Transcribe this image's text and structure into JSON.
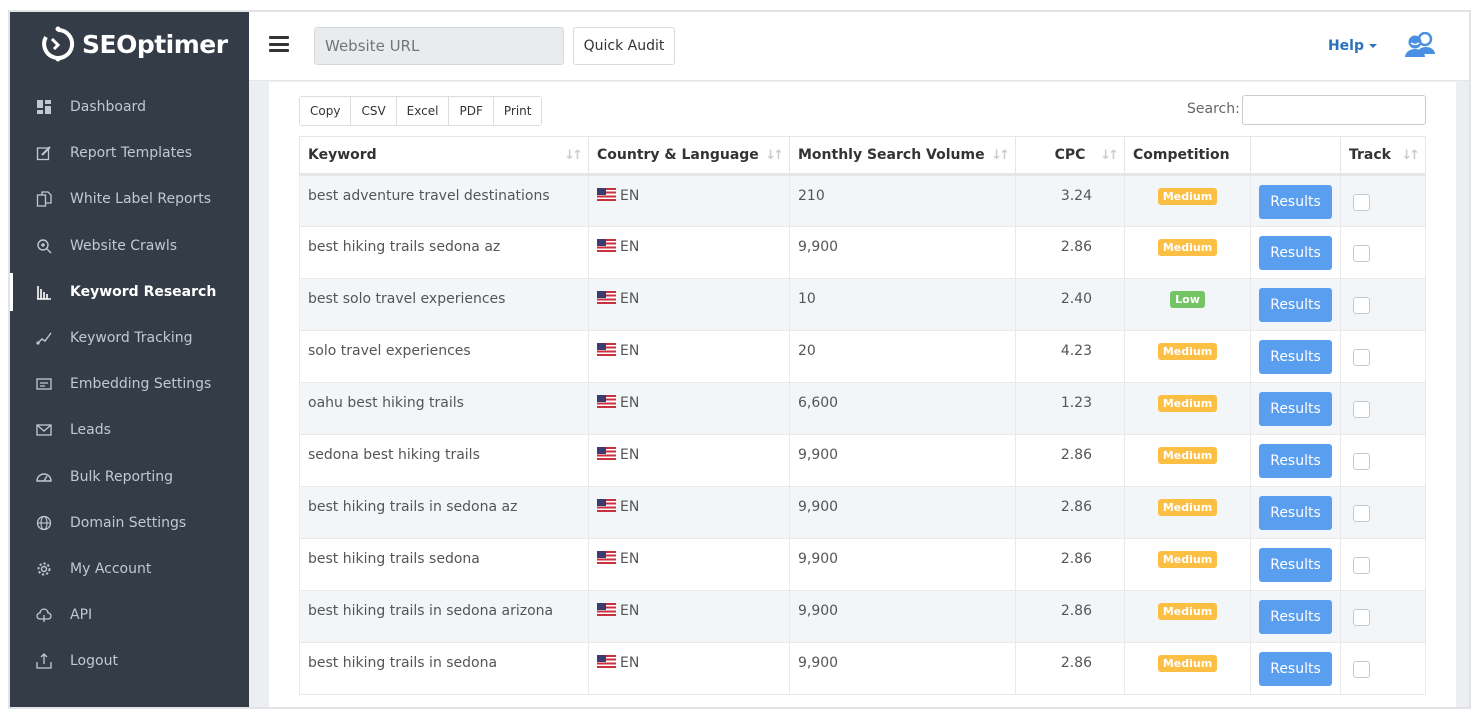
{
  "brand": {
    "name": "SEOptimer"
  },
  "header": {
    "url_placeholder": "Website URL",
    "quick_audit": "Quick Audit",
    "help": "Help"
  },
  "sidebar": {
    "items": [
      {
        "label": "Dashboard",
        "icon": "dashboard-icon"
      },
      {
        "label": "Report Templates",
        "icon": "edit-icon"
      },
      {
        "label": "White Label Reports",
        "icon": "copy-icon"
      },
      {
        "label": "Website Crawls",
        "icon": "search-plus-icon"
      },
      {
        "label": "Keyword Research",
        "icon": "bar-chart-icon",
        "active": true
      },
      {
        "label": "Keyword Tracking",
        "icon": "line-chart-icon"
      },
      {
        "label": "Embedding Settings",
        "icon": "embed-icon"
      },
      {
        "label": "Leads",
        "icon": "envelope-icon"
      },
      {
        "label": "Bulk Reporting",
        "icon": "gauge-icon"
      },
      {
        "label": "Domain Settings",
        "icon": "globe-icon"
      },
      {
        "label": "My Account",
        "icon": "gear-icon"
      },
      {
        "label": "API",
        "icon": "cloud-icon"
      },
      {
        "label": "Logout",
        "icon": "logout-icon"
      }
    ]
  },
  "toolbar": {
    "buttons": [
      "Copy",
      "CSV",
      "Excel",
      "PDF",
      "Print"
    ],
    "search_label": "Search:"
  },
  "table": {
    "columns": [
      "Keyword",
      "Country & Language",
      "Monthly Search Volume",
      "CPC",
      "Competition",
      "",
      "Track"
    ],
    "results_label": "Results",
    "rows": [
      {
        "keyword": "best adventure travel destinations",
        "lang": "EN",
        "volume": "210",
        "cpc": "3.24",
        "competition": "Medium"
      },
      {
        "keyword": "best hiking trails sedona az",
        "lang": "EN",
        "volume": "9,900",
        "cpc": "2.86",
        "competition": "Medium"
      },
      {
        "keyword": "best solo travel experiences",
        "lang": "EN",
        "volume": "10",
        "cpc": "2.40",
        "competition": "Low"
      },
      {
        "keyword": "solo travel experiences",
        "lang": "EN",
        "volume": "20",
        "cpc": "4.23",
        "competition": "Medium"
      },
      {
        "keyword": "oahu best hiking trails",
        "lang": "EN",
        "volume": "6,600",
        "cpc": "1.23",
        "competition": "Medium"
      },
      {
        "keyword": "sedona best hiking trails",
        "lang": "EN",
        "volume": "9,900",
        "cpc": "2.86",
        "competition": "Medium"
      },
      {
        "keyword": "best hiking trails in sedona az",
        "lang": "EN",
        "volume": "9,900",
        "cpc": "2.86",
        "competition": "Medium"
      },
      {
        "keyword": "best hiking trails sedona",
        "lang": "EN",
        "volume": "9,900",
        "cpc": "2.86",
        "competition": "Medium"
      },
      {
        "keyword": "best hiking trails in sedona arizona",
        "lang": "EN",
        "volume": "9,900",
        "cpc": "2.86",
        "competition": "Medium"
      },
      {
        "keyword": "best hiking trails in sedona",
        "lang": "EN",
        "volume": "9,900",
        "cpc": "2.86",
        "competition": "Medium"
      }
    ]
  },
  "colors": {
    "sidebar": "#343d47",
    "accent": "#5a9ef0",
    "medium": "#fbbf44",
    "low": "#74c365",
    "help": "#2a72b9"
  }
}
